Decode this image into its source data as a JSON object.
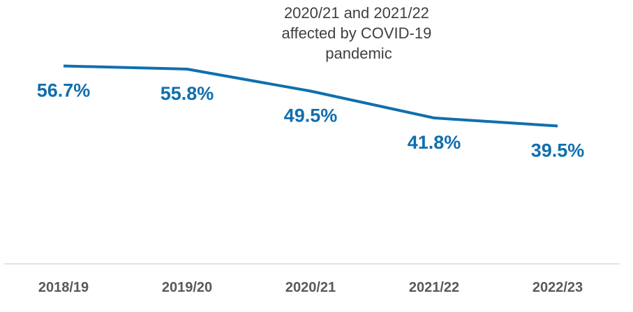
{
  "chart_data": {
    "type": "line",
    "categories": [
      "2018/19",
      "2019/20",
      "2020/21",
      "2021/22",
      "2022/23"
    ],
    "series": [
      {
        "values": [
          56.7,
          55.8,
          49.5,
          41.8,
          39.5
        ],
        "color": "#0F6FAE"
      }
    ],
    "data_labels": [
      "56.7%",
      "55.8%",
      "49.5%",
      "41.8%",
      "39.5%"
    ],
    "annotation": [
      "2020/21 and 2021/22",
      "affected by COVID-19",
      "pandemic"
    ],
    "title": "",
    "xlabel": "",
    "ylabel": "",
    "ylim": [
      0,
      100
    ],
    "grid": false,
    "legend": "none",
    "colors": {
      "line": "#0F6FAE",
      "axis": "#D9D9D9",
      "ticks": "#595959",
      "annotation": "#404040"
    }
  }
}
